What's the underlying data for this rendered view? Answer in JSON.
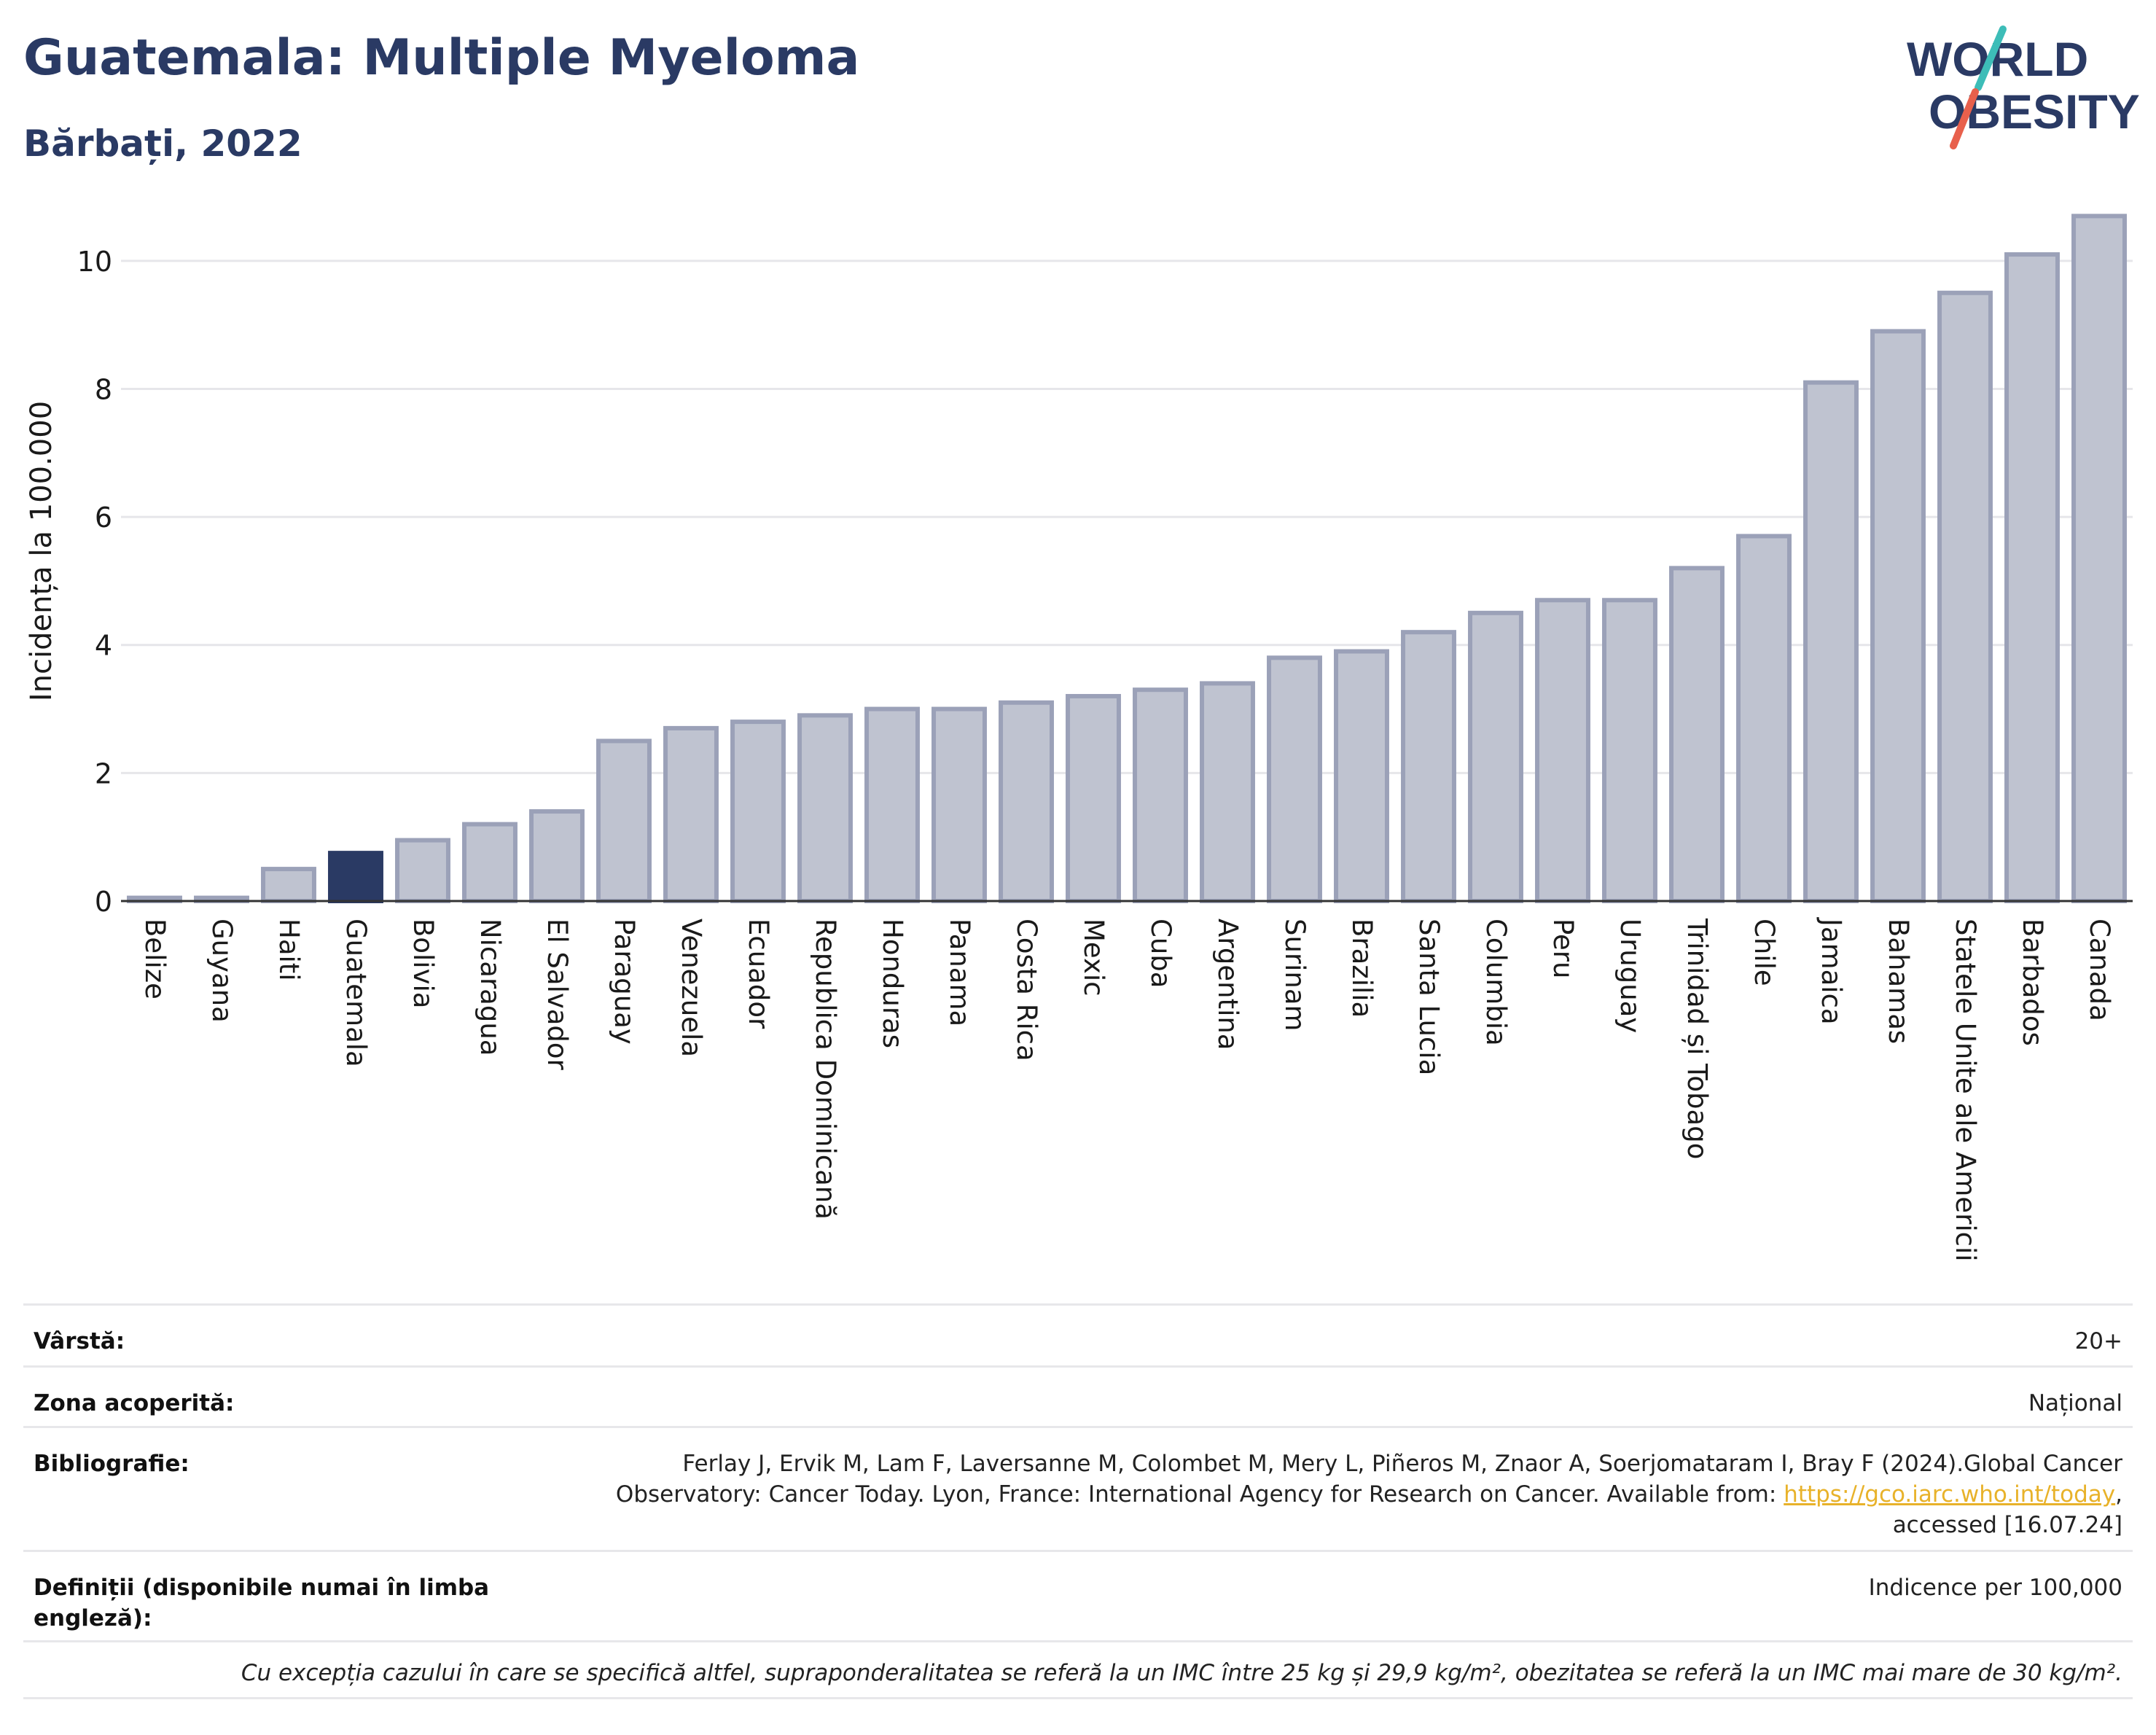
{
  "header": {
    "title": "Guatemala: Multiple Myeloma",
    "subtitle": "Bărbați, 2022"
  },
  "logo": {
    "line1": "WORLD",
    "line2": "OBESITY",
    "accent_colors": [
      "#3dbdb8",
      "#e8604c"
    ],
    "text_color": "#2a3a64"
  },
  "chart_data": {
    "type": "bar",
    "title": "Guatemala: Multiple Myeloma",
    "subtitle": "Bărbați, 2022",
    "ylabel": "Incidența la 100.000",
    "xlabel": "",
    "ylim": [
      0,
      11
    ],
    "yticks": [
      0,
      2,
      4,
      6,
      8,
      10
    ],
    "grid": true,
    "highlight": "Guatemala",
    "colors": {
      "bar": "#bfc3d0",
      "bar_border": "#9ba1b8",
      "highlight": "#2a3a64"
    },
    "categories": [
      "Belize",
      "Guyana",
      "Haiti",
      "Guatemala",
      "Bolivia",
      "Nicaragua",
      "El Salvador",
      "Paraguay",
      "Venezuela",
      "Ecuador",
      "Republica Dominicană",
      "Honduras",
      "Panama",
      "Costa Rica",
      "Mexic",
      "Cuba",
      "Argentina",
      "Surinam",
      "Brazilia",
      "Santa Lucia",
      "Columbia",
      "Peru",
      "Uruguay",
      "Trinidad și Tobago",
      "Chile",
      "Jamaica",
      "Bahamas",
      "Statele Unite ale Americii",
      "Barbados",
      "Canada"
    ],
    "values": [
      0.05,
      0.05,
      0.5,
      0.75,
      0.95,
      1.2,
      1.4,
      2.5,
      2.7,
      2.8,
      2.9,
      3.0,
      3.0,
      3.1,
      3.2,
      3.3,
      3.4,
      3.8,
      3.9,
      4.2,
      4.5,
      4.7,
      4.7,
      5.2,
      5.7,
      8.1,
      8.9,
      9.5,
      10.1,
      10.7
    ]
  },
  "info": {
    "age_label": "Vârstă:",
    "age_value": "20+",
    "area_label": "Zona acoperită:",
    "area_value": "Național",
    "bib_label": "Bibliografie:",
    "bib_line1": "Ferlay J, Ervik M, Lam F, Laversanne M, Colombet M, Mery L, Piñeros M, Znaor A, Soerjomataram I, Bray F (2024).Global Cancer",
    "bib_line2_pre": "Observatory: Cancer Today. Lyon, France: International Agency for Research on Cancer. Available from: ",
    "bib_link": "https://gco.iarc.who.int/today",
    "bib_line2_post": ",",
    "bib_line3": "accessed [16.07.24]",
    "def_label": "Definiții (disponibile numai în limba engleză):",
    "def_value": "Indicence per 100,000",
    "note": "Cu excepția cazului în care se specifică altfel, supraponderalitatea se referă la un IMC între 25 kg și 29,9 kg/m², obezitatea se referă la un IMC mai mare de 30 kg/m²."
  }
}
